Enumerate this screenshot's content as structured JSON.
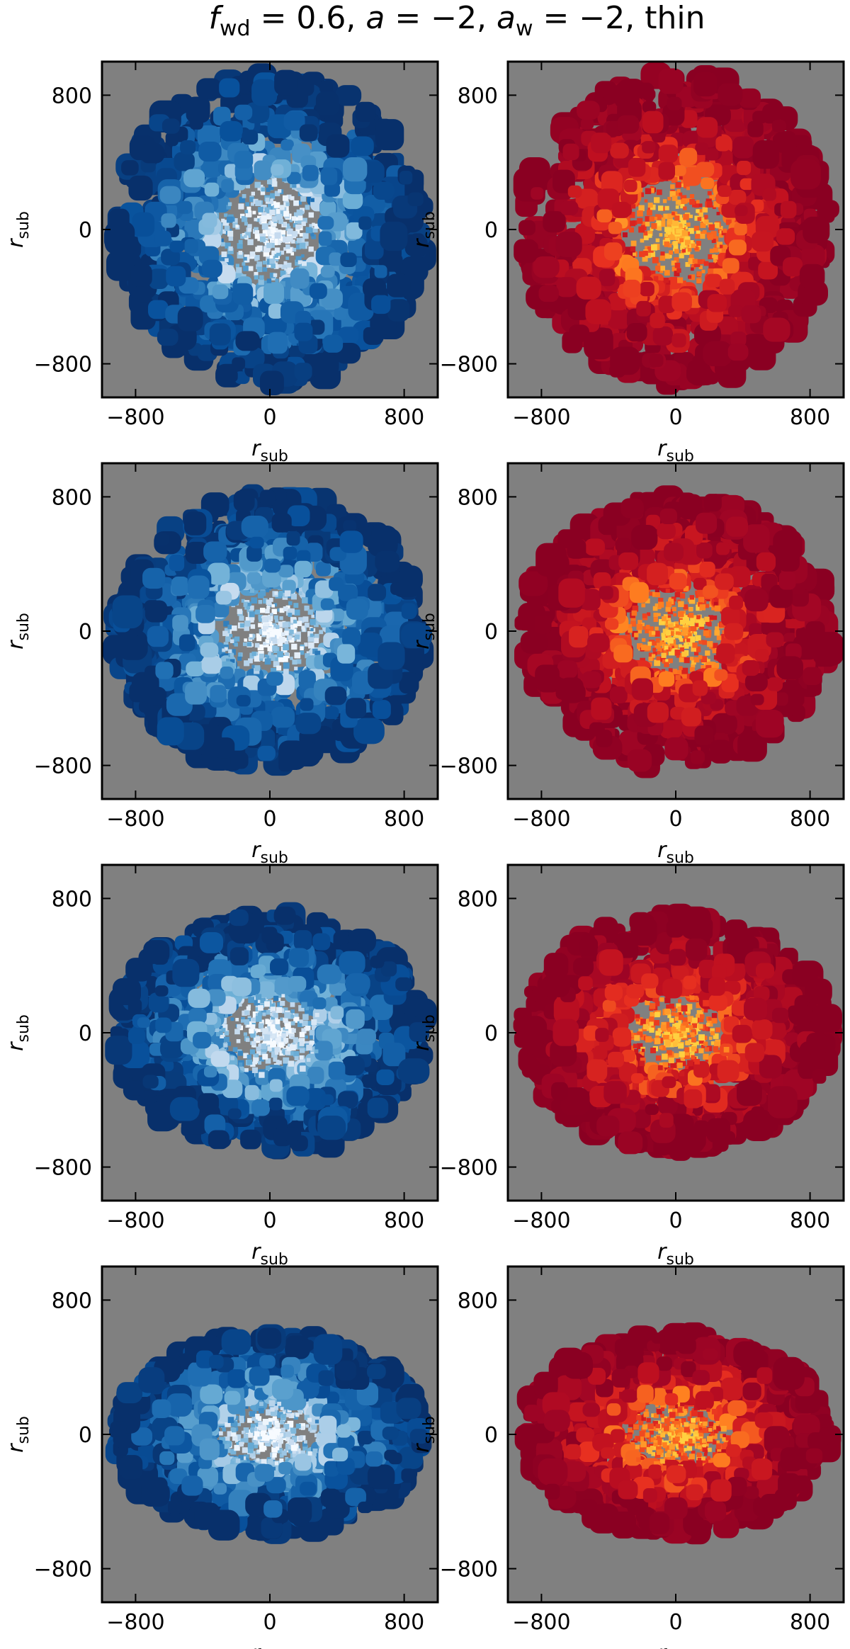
{
  "title": [
    "f",
    "wd",
    " = 0.6, ",
    "a",
    " = −2, ",
    "a",
    "w",
    " = −2, thin"
  ],
  "chart_data": [
    {
      "type": "heatmap",
      "colormap": "Blues",
      "background": "#808080",
      "xlim": [
        -1000,
        1000
      ],
      "ylim": [
        -1000,
        1000
      ],
      "xticks": [
        {
          "value": -800,
          "label": "−800"
        },
        0,
        800
      ],
      "yticks": [
        {
          "value": -800,
          "label": "−800"
        },
        0,
        800
      ],
      "xlabel": [
        "r",
        "sub"
      ],
      "ylabel": [
        "r",
        "sub"
      ]
    },
    {
      "type": "heatmap",
      "colormap": "Reds",
      "background": "#808080",
      "xlim": [
        -1000,
        1000
      ],
      "ylim": [
        -1000,
        1000
      ],
      "xticks": [
        {
          "value": -800,
          "label": "−800"
        },
        0,
        800
      ],
      "yticks": [
        {
          "value": -800,
          "label": "−800"
        },
        0,
        800
      ],
      "xlabel": [
        "r",
        "sub"
      ],
      "ylabel": [
        "r",
        "sub"
      ]
    },
    {
      "type": "heatmap",
      "colormap": "Blues",
      "background": "#808080",
      "xlim": [
        -1000,
        1000
      ],
      "ylim": [
        -1000,
        1000
      ],
      "xticks": [
        {
          "value": -800,
          "label": "−800"
        },
        0,
        800
      ],
      "yticks": [
        {
          "value": -800,
          "label": "−800"
        },
        0,
        800
      ],
      "xlabel": [
        "r",
        "sub"
      ],
      "ylabel": [
        "r",
        "sub"
      ]
    },
    {
      "type": "heatmap",
      "colormap": "Reds",
      "background": "#808080",
      "xlim": [
        -1000,
        1000
      ],
      "ylim": [
        -1000,
        1000
      ],
      "xticks": [
        {
          "value": -800,
          "label": "−800"
        },
        0,
        800
      ],
      "yticks": [
        {
          "value": -800,
          "label": "−800"
        },
        0,
        800
      ],
      "xlabel": [
        "r",
        "sub"
      ],
      "ylabel": [
        "r",
        "sub"
      ]
    },
    {
      "type": "heatmap",
      "colormap": "Blues",
      "background": "#808080",
      "xlim": [
        -1000,
        1000
      ],
      "ylim": [
        -1000,
        1000
      ],
      "xticks": [
        {
          "value": -800,
          "label": "−800"
        },
        0,
        800
      ],
      "yticks": [
        {
          "value": -800,
          "label": "−800"
        },
        0,
        800
      ],
      "xlabel": [
        "r",
        "sub"
      ],
      "ylabel": [
        "r",
        "sub"
      ]
    },
    {
      "type": "heatmap",
      "colormap": "Reds",
      "background": "#808080",
      "xlim": [
        -1000,
        1000
      ],
      "ylim": [
        -1000,
        1000
      ],
      "xticks": [
        {
          "value": -800,
          "label": "−800"
        },
        0,
        800
      ],
      "yticks": [
        {
          "value": -800,
          "label": "−800"
        },
        0,
        800
      ],
      "xlabel": [
        "r",
        "sub"
      ],
      "ylabel": [
        "r",
        "sub"
      ]
    },
    {
      "type": "heatmap",
      "colormap": "Blues",
      "background": "#808080",
      "xlim": [
        -1000,
        1000
      ],
      "ylim": [
        -1000,
        1000
      ],
      "xticks": [
        {
          "value": -800,
          "label": "−800"
        },
        0,
        800
      ],
      "yticks": [
        {
          "value": -800,
          "label": "−800"
        },
        0,
        800
      ],
      "xlabel": [
        "r",
        "sub"
      ],
      "ylabel": [
        "r",
        "sub"
      ]
    },
    {
      "type": "heatmap",
      "colormap": "Reds",
      "background": "#808080",
      "xlim": [
        -1000,
        1000
      ],
      "ylim": [
        -1000,
        1000
      ],
      "xticks": [
        {
          "value": -800,
          "label": "−800"
        },
        0,
        800
      ],
      "yticks": [
        {
          "value": -800,
          "label": "−800"
        },
        0,
        800
      ],
      "xlabel": [
        "r",
        "sub"
      ],
      "ylabel": [
        "r",
        "sub"
      ]
    }
  ]
}
